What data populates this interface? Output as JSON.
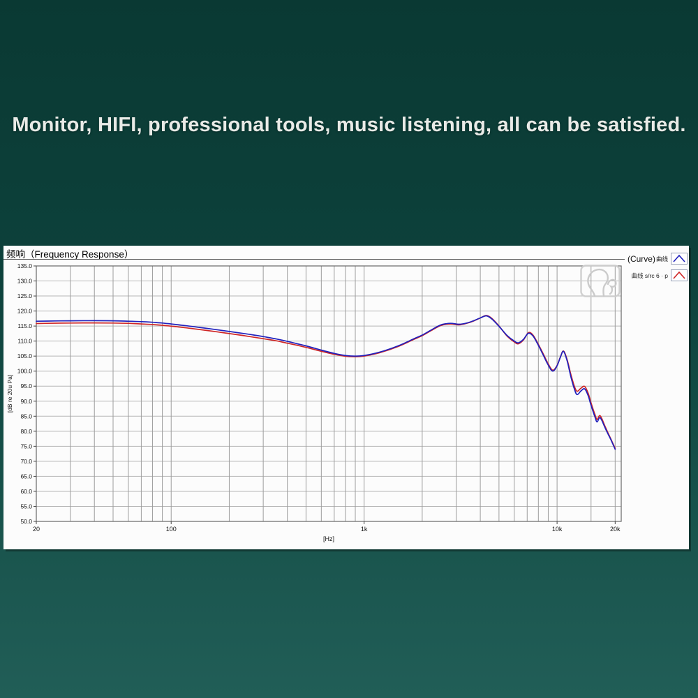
{
  "page": {
    "headline": "Monitor, HIFI, professional tools, music listening, all can be satisfied.",
    "background_top_color": "#0a3933",
    "background_bottom_color": "#215e57",
    "headline_color": "#e9ebe7"
  },
  "panel": {
    "title": "频响（Frequency Response）",
    "legend": {
      "row1_main": "(Curve)",
      "row1_sub": "曲线",
      "row2_main": "曲线 s/rc 6 · p"
    },
    "icons": {
      "legend_marker": "chevron-up-icon",
      "plot_watermark": "listening-head-icon"
    }
  },
  "chart_data": {
    "type": "line",
    "title": "频响（Frequency Response）",
    "xlabel": "[Hz]",
    "ylabel": "[dB re 20u Pa]",
    "x_scale": "log",
    "xlim": [
      20,
      20000
    ],
    "x_pad_max": 21500,
    "ylim": [
      50,
      135
    ],
    "y_tick_step": 5,
    "y_tick_labels": [
      "135.0",
      "130.0",
      "125.0",
      "120.0",
      "115.0",
      "110.0",
      "105.0",
      "100.0",
      "95.0",
      "90.0",
      "85.0",
      "80.0",
      "75.0",
      "70.0",
      "65.0",
      "60.0",
      "55.0",
      "50.0"
    ],
    "x_ticks": [
      {
        "value": 20,
        "label": "20"
      },
      {
        "value": 100,
        "label": "100"
      },
      {
        "value": 1000,
        "label": "1k"
      },
      {
        "value": 10000,
        "label": "10k"
      },
      {
        "value": 20000,
        "label": "20k"
      }
    ],
    "grid_x_minor": [
      30,
      40,
      50,
      60,
      70,
      80,
      90,
      200,
      300,
      400,
      500,
      600,
      700,
      800,
      900,
      2000,
      3000,
      4000,
      5000,
      6000,
      7000,
      8000,
      9000,
      15000
    ],
    "grid_on": true,
    "legend_position": "top-right-outside",
    "colors": {
      "grid_h": "#b6b6b6",
      "grid_v": "#9c9c9c",
      "border": "#666666",
      "label": "#111111"
    },
    "series": [
      {
        "name": "曲线 s/rc 6 · p",
        "color": "#cf2626",
        "points": [
          [
            20,
            115.85
          ],
          [
            25,
            115.95
          ],
          [
            30,
            116.0
          ],
          [
            40,
            116.05
          ],
          [
            50,
            116.0
          ],
          [
            60,
            115.9
          ],
          [
            70,
            115.7
          ],
          [
            80,
            115.5
          ],
          [
            90,
            115.25
          ],
          [
            100,
            114.95
          ],
          [
            120,
            114.4
          ],
          [
            150,
            113.6
          ],
          [
            200,
            112.5
          ],
          [
            250,
            111.6
          ],
          [
            300,
            110.8
          ],
          [
            350,
            110.1
          ],
          [
            400,
            109.3
          ],
          [
            450,
            108.6
          ],
          [
            500,
            107.9
          ],
          [
            600,
            106.6
          ],
          [
            700,
            105.6
          ],
          [
            800,
            104.95
          ],
          [
            900,
            104.8
          ],
          [
            1000,
            105.0
          ],
          [
            1200,
            106.1
          ],
          [
            1500,
            108.2
          ],
          [
            1800,
            110.5
          ],
          [
            2000,
            111.8
          ],
          [
            2200,
            113.3
          ],
          [
            2500,
            115.2
          ],
          [
            2800,
            115.7
          ],
          [
            3100,
            115.4
          ],
          [
            3400,
            115.9
          ],
          [
            3700,
            116.7
          ],
          [
            4000,
            117.7
          ],
          [
            4300,
            118.5
          ],
          [
            4600,
            117.5
          ],
          [
            5000,
            115.0
          ],
          [
            5500,
            111.7
          ],
          [
            6000,
            109.7
          ],
          [
            6300,
            109.1
          ],
          [
            6700,
            110.4
          ],
          [
            7100,
            112.8
          ],
          [
            7500,
            112.0
          ],
          [
            8000,
            108.9
          ],
          [
            8500,
            105.6
          ],
          [
            9000,
            102.4
          ],
          [
            9500,
            100.3
          ],
          [
            10000,
            101.9
          ],
          [
            10400,
            104.7
          ],
          [
            10800,
            106.7
          ],
          [
            11300,
            103.6
          ],
          [
            11800,
            98.8
          ],
          [
            12300,
            94.9
          ],
          [
            12700,
            93.3
          ],
          [
            13300,
            94.3
          ],
          [
            13900,
            94.9
          ],
          [
            14500,
            92.6
          ],
          [
            15000,
            89.4
          ],
          [
            15700,
            85.6
          ],
          [
            16100,
            83.9
          ],
          [
            16600,
            85.2
          ],
          [
            17000,
            84.4
          ],
          [
            17600,
            82.1
          ],
          [
            18200,
            80.0
          ],
          [
            19000,
            77.4
          ],
          [
            20000,
            74.3
          ]
        ]
      },
      {
        "name": "(Curve)曲线",
        "color": "#2121bd",
        "points": [
          [
            20,
            116.6
          ],
          [
            25,
            116.7
          ],
          [
            30,
            116.75
          ],
          [
            40,
            116.8
          ],
          [
            50,
            116.75
          ],
          [
            60,
            116.6
          ],
          [
            70,
            116.45
          ],
          [
            80,
            116.25
          ],
          [
            90,
            116.0
          ],
          [
            100,
            115.7
          ],
          [
            120,
            115.1
          ],
          [
            150,
            114.3
          ],
          [
            200,
            113.2
          ],
          [
            250,
            112.3
          ],
          [
            300,
            111.5
          ],
          [
            350,
            110.7
          ],
          [
            400,
            109.9
          ],
          [
            450,
            109.1
          ],
          [
            500,
            108.4
          ],
          [
            600,
            107.0
          ],
          [
            700,
            105.9
          ],
          [
            800,
            105.2
          ],
          [
            900,
            105.0
          ],
          [
            1000,
            105.2
          ],
          [
            1200,
            106.3
          ],
          [
            1500,
            108.4
          ],
          [
            1800,
            110.7
          ],
          [
            2000,
            112.0
          ],
          [
            2200,
            113.5
          ],
          [
            2500,
            115.4
          ],
          [
            2800,
            115.9
          ],
          [
            3100,
            115.6
          ],
          [
            3400,
            116.0
          ],
          [
            3700,
            116.8
          ],
          [
            4000,
            117.7
          ],
          [
            4300,
            118.4
          ],
          [
            4600,
            117.3
          ],
          [
            5000,
            114.9
          ],
          [
            5500,
            111.9
          ],
          [
            6000,
            110.0
          ],
          [
            6300,
            109.4
          ],
          [
            6700,
            110.6
          ],
          [
            7100,
            112.6
          ],
          [
            7500,
            111.7
          ],
          [
            8000,
            108.6
          ],
          [
            8500,
            105.2
          ],
          [
            9000,
            102.0
          ],
          [
            9500,
            100.0
          ],
          [
            10000,
            101.8
          ],
          [
            10400,
            104.6
          ],
          [
            10800,
            106.6
          ],
          [
            11300,
            103.2
          ],
          [
            11800,
            98.0
          ],
          [
            12300,
            94.0
          ],
          [
            12700,
            92.2
          ],
          [
            13300,
            93.4
          ],
          [
            13900,
            94.1
          ],
          [
            14500,
            91.8
          ],
          [
            15000,
            88.6
          ],
          [
            15700,
            84.8
          ],
          [
            16100,
            83.1
          ],
          [
            16600,
            84.5
          ],
          [
            17000,
            83.8
          ],
          [
            17600,
            81.6
          ],
          [
            18200,
            79.6
          ],
          [
            19000,
            77.2
          ],
          [
            20000,
            74.0
          ]
        ]
      }
    ]
  }
}
